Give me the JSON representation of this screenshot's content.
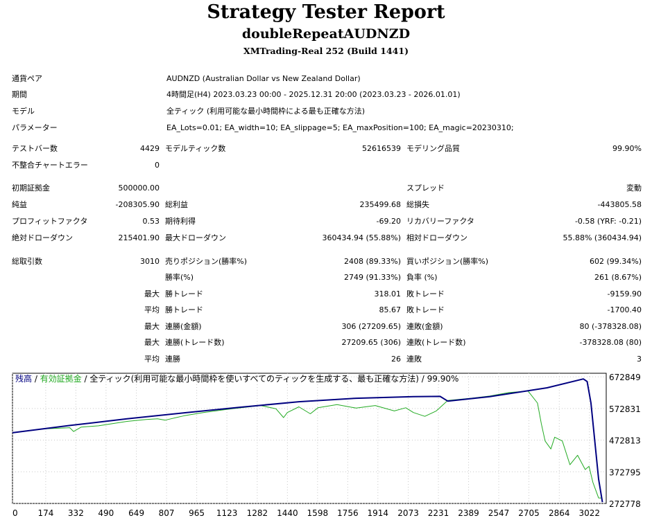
{
  "header": {
    "title": "Strategy Tester Report",
    "subtitle": "doubleRepeatAUDNZD",
    "server": "XMTrading-Real 252 (Build 1441)"
  },
  "settings": [
    {
      "label": "通貨ペア",
      "value": "AUDNZD (Australian Dollar vs New Zealand Dollar)"
    },
    {
      "label": "期間",
      "value": "4時間足(H4) 2023.03.23 00:00 - 2025.12.31 20:00 (2023.03.23 - 2026.01.01)"
    },
    {
      "label": "モデル",
      "value": "全ティック (利用可能な最小時間枠による最も正確な方法)"
    },
    {
      "label": "パラメーター",
      "value": "EA_Lots=0.01; EA_width=10; EA_slippage=5; EA_maxPosition=100; EA_magic=20230310;"
    }
  ],
  "stats": {
    "test_bars": {
      "label": "テストバー数",
      "value": "4429"
    },
    "model_ticks": {
      "label": "モデルティック数",
      "value": "52616539"
    },
    "model_quality": {
      "label": "モデリング品質",
      "value": "99.90%"
    },
    "mismatch": {
      "label": "不整合チャートエラー",
      "value": "0"
    },
    "initial_deposit": {
      "label": "初期証拠金",
      "value": "500000.00"
    },
    "spread": {
      "label": "スプレッド",
      "value": "変動"
    },
    "net_profit": {
      "label": "純益",
      "value": "-208305.90"
    },
    "gross_profit": {
      "label": "総利益",
      "value": "235499.68"
    },
    "gross_loss": {
      "label": "総損失",
      "value": "-443805.58"
    },
    "profit_factor": {
      "label": "プロフィットファクタ",
      "value": "0.53"
    },
    "expected_payoff": {
      "label": "期待利得",
      "value": "-69.20"
    },
    "recovery_factor": {
      "label": "リカバリーファクタ",
      "value": "-0.58 (YRF: -0.21)"
    },
    "abs_drawdown": {
      "label": "絶対ドローダウン",
      "value": "215401.90"
    },
    "max_drawdown": {
      "label": "最大ドローダウン",
      "value": "360434.94 (55.88%)"
    },
    "rel_drawdown": {
      "label": "相対ドローダウン",
      "value": "55.88% (360434.94)"
    },
    "total_trades": {
      "label": "総取引数",
      "value": "3010"
    },
    "short_positions": {
      "label": "売りポジション(勝率%)",
      "value": "2408 (89.33%)"
    },
    "long_positions": {
      "label": "買いポジション(勝率%)",
      "value": "602 (99.34%)"
    },
    "win_rate": {
      "label": "勝率(%)",
      "value": "2749 (91.33%)"
    },
    "loss_rate": {
      "label": "負率 (%)",
      "value": "261 (8.67%)"
    },
    "max_label": "最大",
    "avg_label": "平均",
    "largest_win": {
      "label": "勝トレード",
      "value": "318.01"
    },
    "largest_loss": {
      "label": "敗トレード",
      "value": "-9159.90"
    },
    "avg_win": {
      "label": "勝トレード",
      "value": "85.67"
    },
    "avg_loss": {
      "label": "敗トレード",
      "value": "-1700.40"
    },
    "max_consec_wins_amt": {
      "label": "連勝(金額)",
      "value": "306 (27209.65)"
    },
    "max_consec_losses_amt": {
      "label": "連敗(金額)",
      "value": "80 (-378328.08)"
    },
    "max_consec_wins_cnt": {
      "label": "連勝(トレード数)",
      "value": "27209.65 (306)"
    },
    "max_consec_losses_cnt": {
      "label": "連敗(トレード数)",
      "value": "-378328.08 (80)"
    },
    "avg_consec_wins": {
      "label": "連勝",
      "value": "26"
    },
    "avg_consec_losses": {
      "label": "連敗",
      "value": "3"
    }
  },
  "chart_data": {
    "type": "line",
    "legend": {
      "balance": "残高",
      "sep1": " / ",
      "equity": "有効証拠金",
      "sep2": " / 全ティック(利用可能な最小時間枠を使いすべてのティックを生成する、最も正確な方法) / 99.90%"
    },
    "colors": {
      "balance": "#000080",
      "equity": "#22aa22",
      "grid": "#c8c8c8"
    },
    "x_ticks": [
      0,
      174,
      332,
      490,
      649,
      807,
      965,
      1123,
      1282,
      1440,
      1598,
      1756,
      1914,
      2073,
      2231,
      2389,
      2547,
      2705,
      2864,
      3022
    ],
    "y_ticks": [
      672849,
      572831,
      472813,
      372795,
      272778
    ],
    "xlim": [
      0,
      3110
    ],
    "ylim": [
      272778,
      684000
    ],
    "series": [
      {
        "name": "残高",
        "x": [
          0,
          300,
          600,
          900,
          1200,
          1500,
          1800,
          2100,
          2240,
          2280,
          2500,
          2800,
          2990,
          3010,
          3030,
          3050,
          3070,
          3090
        ],
        "y": [
          496000,
          519000,
          540000,
          559000,
          577000,
          594000,
          605000,
          610000,
          611000,
          596000,
          610000,
          638000,
          666000,
          658000,
          590000,
          470000,
          350000,
          277000
        ]
      },
      {
        "name": "有効証拠金",
        "x": [
          0,
          150,
          300,
          320,
          360,
          450,
          600,
          700,
          760,
          800,
          900,
          1000,
          1100,
          1150,
          1200,
          1300,
          1380,
          1420,
          1440,
          1500,
          1560,
          1600,
          1700,
          1800,
          1900,
          2000,
          2060,
          2100,
          2160,
          2220,
          2280,
          2400,
          2500,
          2600,
          2700,
          2750,
          2770,
          2790,
          2820,
          2840,
          2880,
          2920,
          2960,
          3000,
          3020,
          3040,
          3070,
          3090
        ],
        "y": [
          496000,
          508000,
          512000,
          500000,
          514000,
          518000,
          532000,
          538000,
          540000,
          536000,
          550000,
          560000,
          568000,
          572000,
          575000,
          582000,
          572000,
          544000,
          560000,
          578000,
          556000,
          575000,
          585000,
          574000,
          582000,
          565000,
          575000,
          560000,
          548000,
          565000,
          598000,
          605000,
          612000,
          623000,
          628000,
          590000,
          525000,
          470000,
          445000,
          482000,
          470000,
          395000,
          425000,
          380000,
          390000,
          340000,
          290000,
          290000
        ]
      }
    ]
  }
}
